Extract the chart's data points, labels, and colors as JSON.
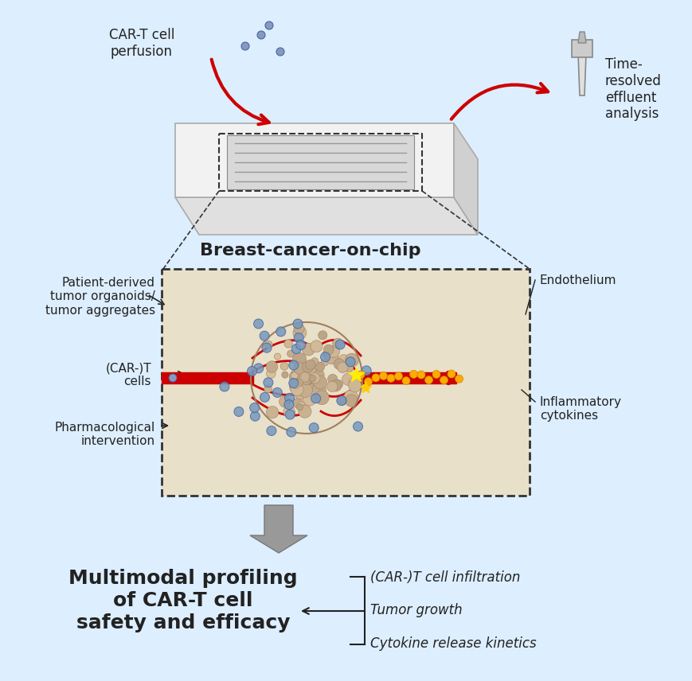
{
  "bg_color": "#ddeeff",
  "top_section": {
    "chip_label": "Breast-cancer-on-chip",
    "car_t_label": "CAR-T cell\nperfusion",
    "time_resolved_label": "Time-\nresolved\neffluent\nanalysis"
  },
  "middle_section": {
    "box_bg": "#e8e0c8",
    "label_patient": "Patient-derived\ntumor organoids/\ntumor aggregates",
    "label_cart": "(CAR-)T\ncells",
    "label_pharma": "Pharmacological\nintervention",
    "label_endothelium": "Endothelium",
    "label_cytokines": "Inflammatory\ncytokines"
  },
  "bottom_section": {
    "main_bold": "Multimodal profiling\nof CAR-T cell\nsafety and efficacy",
    "item1": "(CAR-)T cell infiltration",
    "item2": "Tumor growth",
    "item3": "Cytokine release kinetics"
  },
  "red_color": "#cc0000",
  "dark_color": "#222222"
}
